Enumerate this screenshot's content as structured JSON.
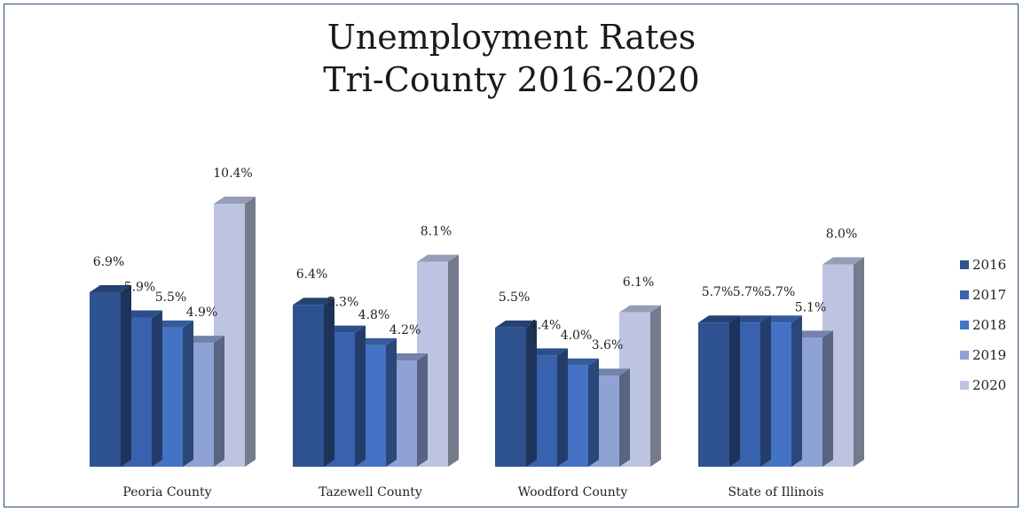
{
  "chart_data": {
    "type": "bar",
    "title_lines": [
      "Unemployment Rates",
      "Tri-County 2016-2020"
    ],
    "categories": [
      "Peoria County",
      "Tazewell County",
      "Woodford County",
      "State of Illinois"
    ],
    "series": [
      {
        "name": "2016",
        "color": "#2e528f",
        "values": [
          6.9,
          6.4,
          5.5,
          5.7
        ]
      },
      {
        "name": "2017",
        "color": "#3862ad",
        "values": [
          5.9,
          5.3,
          4.4,
          5.7
        ]
      },
      {
        "name": "2018",
        "color": "#4472c4",
        "values": [
          5.5,
          4.8,
          4.0,
          5.7
        ]
      },
      {
        "name": "2019",
        "color": "#8fa2d4",
        "values": [
          4.9,
          4.2,
          3.6,
          5.1
        ]
      },
      {
        "name": "2020",
        "color": "#bcc4e2",
        "values": [
          10.4,
          8.1,
          6.1,
          8.0
        ]
      }
    ],
    "value_suffix": "%",
    "ylim": [
      0,
      10.4
    ],
    "legend_position": "right",
    "grid": false,
    "style": "3d-columns"
  }
}
